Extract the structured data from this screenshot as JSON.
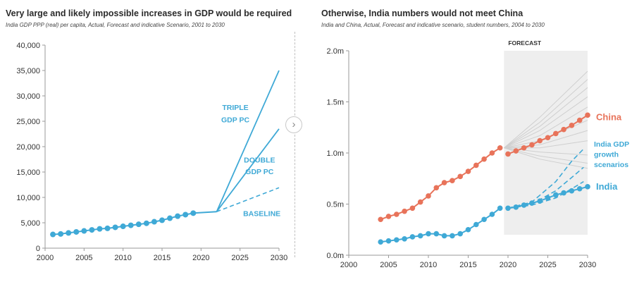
{
  "charts": {
    "left": {
      "title": "Very large and likely impossible increases in GDP would be required",
      "subtitle": "India GDP PPP (real) per capita, Actual, Forecast and indicative Scenario, 2001 to 2030"
    },
    "right": {
      "title": "Otherwise, India numbers would not meet China",
      "subtitle": "India and China, Actual, Forecast and indicative scenario, student numbers, 2004 to 2030"
    }
  },
  "next_icon": "chevron-right-icon",
  "colors": {
    "india": "#3fa9d6",
    "china": "#e8735a",
    "scenario": "#cfcfcf",
    "forecast_bg": "#eeeeee",
    "axis_text": "#333333"
  },
  "chart_data": [
    {
      "type": "line",
      "title": "Very large and likely impossible increases in GDP would be required",
      "subtitle": "India GDP PPP (real) per capita, Actual, Forecast and indicative Scenario, 2001 to 2030",
      "xlabel": "",
      "ylabel": "",
      "xlim": [
        2000,
        2030
      ],
      "ylim": [
        0,
        40000
      ],
      "xticks": [
        "2000",
        "2005",
        "2010",
        "2015",
        "2020",
        "2025",
        "2030"
      ],
      "yticks": [
        "0",
        "5,000",
        "10,000",
        "15,000",
        "20,000",
        "25,000",
        "30,000",
        "35,000",
        "40,000"
      ],
      "grid": false,
      "series": [
        {
          "role": "actual",
          "x": [
            2001,
            2002,
            2003,
            2004,
            2005,
            2006,
            2007,
            2008,
            2009,
            2010,
            2011,
            2012,
            2013,
            2014,
            2015,
            2016,
            2017,
            2018,
            2019
          ],
          "y": [
            2700,
            2800,
            3000,
            3200,
            3400,
            3600,
            3800,
            3900,
            4100,
            4300,
            4500,
            4700,
            4900,
            5200,
            5500,
            5900,
            6300,
            6600,
            6900
          ]
        },
        {
          "role": "actual-line",
          "x": [
            2019,
            2022
          ],
          "y": [
            6900,
            7200
          ]
        },
        {
          "name": "BASELINE",
          "style": "dashed",
          "x": [
            2022,
            2030
          ],
          "y": [
            7200,
            11900
          ]
        },
        {
          "name": "DOUBLE GDP PC",
          "x": [
            2022,
            2030
          ],
          "y": [
            7200,
            23500
          ]
        },
        {
          "name": "TRIPLE GDP PC",
          "x": [
            2022,
            2030
          ],
          "y": [
            7200,
            35000
          ]
        }
      ],
      "annotations": [
        {
          "label": "TRIPLE",
          "x": 2024.4,
          "y": 27200
        },
        {
          "label": "GDP PC",
          "x": 2024.4,
          "y": 24800
        },
        {
          "label": "DOUBLE",
          "x": 2027.5,
          "y": 16900
        },
        {
          "label": "GDP PC",
          "x": 2027.5,
          "y": 14600
        },
        {
          "label": "BASELINE",
          "x": 2027.8,
          "y": 6300
        }
      ]
    },
    {
      "type": "line",
      "title": "Otherwise, India numbers would not meet China",
      "subtitle": "India and China, Actual, Forecast and indicative scenario, student numbers, 2004 to 2030",
      "xlabel": "",
      "ylabel": "",
      "xlim": [
        2000,
        2030
      ],
      "ylim": [
        0,
        2.0
      ],
      "xticks": [
        "2000",
        "2005",
        "2010",
        "2015",
        "2020",
        "2025",
        "2030"
      ],
      "yticks": [
        "0.0m",
        "0.5m",
        "1.0m",
        "1.5m",
        "2.0m"
      ],
      "grid": false,
      "forecast_region": {
        "label": "FORECAST",
        "x": [
          2019.5,
          2030
        ],
        "y": [
          0.2,
          2.0
        ]
      },
      "series": [
        {
          "name": "China",
          "role": "actual",
          "x": [
            2004,
            2005,
            2006,
            2007,
            2008,
            2009,
            2010,
            2011,
            2012,
            2013,
            2014,
            2015,
            2016,
            2017,
            2018,
            2019
          ],
          "y": [
            0.35,
            0.38,
            0.4,
            0.43,
            0.46,
            0.52,
            0.58,
            0.66,
            0.71,
            0.73,
            0.77,
            0.82,
            0.88,
            0.94,
            1.0,
            1.05
          ]
        },
        {
          "name": "China",
          "role": "forecast",
          "x": [
            2020,
            2021,
            2022,
            2023,
            2024,
            2025,
            2026,
            2027,
            2028,
            2029,
            2030
          ],
          "y": [
            0.99,
            1.02,
            1.05,
            1.08,
            1.12,
            1.15,
            1.19,
            1.23,
            1.27,
            1.32,
            1.37
          ]
        },
        {
          "name": "India",
          "role": "actual",
          "x": [
            2004,
            2005,
            2006,
            2007,
            2008,
            2009,
            2010,
            2011,
            2012,
            2013,
            2014,
            2015,
            2016,
            2017,
            2018,
            2019
          ],
          "y": [
            0.13,
            0.14,
            0.15,
            0.16,
            0.18,
            0.19,
            0.21,
            0.21,
            0.19,
            0.19,
            0.21,
            0.25,
            0.3,
            0.35,
            0.4,
            0.46
          ]
        },
        {
          "name": "India",
          "role": "forecast",
          "x": [
            2020,
            2021,
            2022,
            2023,
            2024,
            2025,
            2026,
            2027,
            2028,
            2029,
            2030
          ],
          "y": [
            0.46,
            0.47,
            0.49,
            0.51,
            0.53,
            0.56,
            0.59,
            0.61,
            0.63,
            0.65,
            0.67
          ]
        },
        {
          "role": "china-scenario",
          "x": [
            2019.5,
            2024,
            2030
          ],
          "y": [
            1.05,
            1.35,
            1.8
          ]
        },
        {
          "role": "china-scenario",
          "x": [
            2019.5,
            2024,
            2030
          ],
          "y": [
            1.05,
            1.3,
            1.72
          ]
        },
        {
          "role": "china-scenario",
          "x": [
            2019.5,
            2024,
            2030
          ],
          "y": [
            1.05,
            1.26,
            1.64
          ]
        },
        {
          "role": "china-scenario",
          "x": [
            2019.5,
            2024,
            2030
          ],
          "y": [
            1.05,
            1.22,
            1.55
          ]
        },
        {
          "role": "china-scenario",
          "x": [
            2019.5,
            2024,
            2030
          ],
          "y": [
            1.05,
            1.17,
            1.45
          ]
        },
        {
          "role": "china-scenario",
          "x": [
            2019.5,
            2024,
            2030
          ],
          "y": [
            1.05,
            1.12,
            1.32
          ]
        },
        {
          "role": "china-scenario",
          "x": [
            2019.5,
            2024,
            2030
          ],
          "y": [
            1.05,
            1.08,
            1.22
          ]
        },
        {
          "role": "china-scenario",
          "x": [
            2019.5,
            2024,
            2030
          ],
          "y": [
            1.05,
            1.05,
            1.12
          ]
        },
        {
          "role": "china-scenario",
          "x": [
            2019.5,
            2024,
            2030
          ],
          "y": [
            1.05,
            1.01,
            0.98
          ]
        },
        {
          "role": "china-scenario",
          "x": [
            2019.5,
            2024,
            2030
          ],
          "y": [
            1.05,
            0.97,
            0.9
          ]
        },
        {
          "role": "china-scenario",
          "x": [
            2019.5,
            2024,
            2030
          ],
          "y": [
            1.05,
            0.94,
            0.85
          ]
        },
        {
          "name": "India GDP growth scenarios",
          "style": "dashed",
          "x": [
            2020,
            2023,
            2026,
            2028,
            2029.5
          ],
          "y": [
            0.46,
            0.52,
            0.72,
            0.92,
            1.04
          ]
        },
        {
          "name": "India GDP growth scenarios",
          "style": "dashed",
          "x": [
            2020,
            2023,
            2026,
            2028,
            2029.5
          ],
          "y": [
            0.46,
            0.5,
            0.63,
            0.76,
            0.86
          ]
        },
        {
          "name": "India GDP growth scenarios",
          "style": "dashed",
          "x": [
            2020,
            2023,
            2026,
            2028,
            2029.5
          ],
          "y": [
            0.46,
            0.49,
            0.56,
            0.65,
            0.72
          ]
        }
      ],
      "labels": [
        {
          "text": "China",
          "series": "China"
        },
        {
          "text": "India GDP",
          "series": "India GDP growth scenarios"
        },
        {
          "text": "growth",
          "series": "India GDP growth scenarios"
        },
        {
          "text": "scenarios",
          "series": "India GDP growth scenarios"
        },
        {
          "text": "India",
          "series": "India"
        }
      ]
    }
  ]
}
